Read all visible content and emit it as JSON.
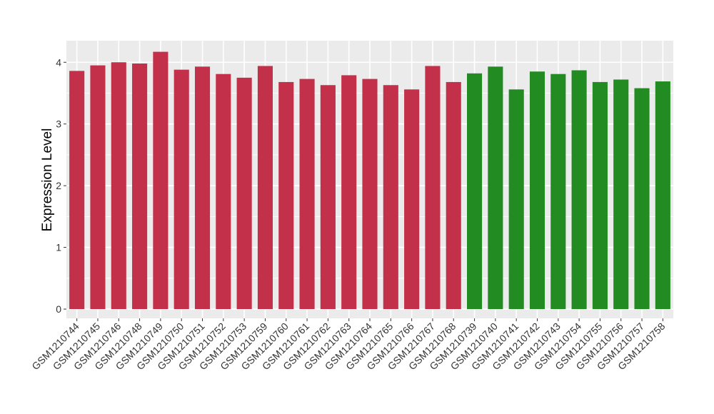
{
  "chart_data": {
    "type": "bar",
    "title": "",
    "xlabel": "",
    "ylabel": "Expression Level",
    "ylim": [
      -0.15,
      4.35
    ],
    "yticks": [
      0,
      1,
      2,
      3,
      4
    ],
    "ytick_labels": [
      "0",
      "1",
      "2",
      "3",
      "4"
    ],
    "grid": true,
    "legend": "none",
    "categories": [
      "GSM1210744",
      "GSM1210745",
      "GSM1210746",
      "GSM1210748",
      "GSM1210749",
      "GSM1210750",
      "GSM1210751",
      "GSM1210752",
      "GSM1210753",
      "GSM1210759",
      "GSM1210760",
      "GSM1210761",
      "GSM1210762",
      "GSM1210763",
      "GSM1210764",
      "GSM1210765",
      "GSM1210766",
      "GSM1210767",
      "GSM1210768",
      "GSM1210739",
      "GSM1210740",
      "GSM1210741",
      "GSM1210742",
      "GSM1210743",
      "GSM1210754",
      "GSM1210755",
      "GSM1210756",
      "GSM1210757",
      "GSM1210758"
    ],
    "values": [
      3.86,
      3.95,
      4.0,
      3.98,
      4.17,
      3.88,
      3.93,
      3.81,
      3.75,
      3.94,
      3.68,
      3.73,
      3.63,
      3.79,
      3.73,
      3.63,
      3.56,
      3.94,
      3.68,
      3.82,
      3.93,
      3.56,
      3.85,
      3.81,
      3.87,
      3.68,
      3.72,
      3.58,
      3.69
    ],
    "bar_colors": [
      "#c3304a",
      "#c3304a",
      "#c3304a",
      "#c3304a",
      "#c3304a",
      "#c3304a",
      "#c3304a",
      "#c3304a",
      "#c3304a",
      "#c3304a",
      "#c3304a",
      "#c3304a",
      "#c3304a",
      "#c3304a",
      "#c3304a",
      "#c3304a",
      "#c3304a",
      "#c3304a",
      "#c3304a",
      "#228b22",
      "#228b22",
      "#228b22",
      "#228b22",
      "#228b22",
      "#228b22",
      "#228b22",
      "#228b22",
      "#228b22",
      "#228b22"
    ],
    "panel_background": "#ebebeb",
    "grid_color": "#ffffff"
  }
}
